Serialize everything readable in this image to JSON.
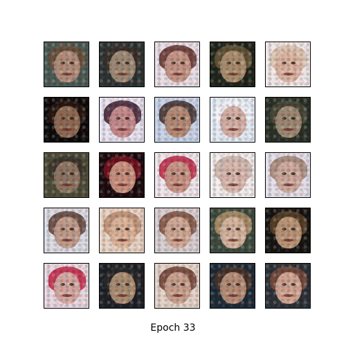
{
  "caption": "Epoch 33",
  "grid": {
    "rows": 5,
    "cols": 5,
    "images": [
      {
        "bg": "#4a5a52",
        "hair": "#6a5038",
        "face": "#b08c78"
      },
      {
        "bg": "#2c3330",
        "hair": "#3a3028",
        "face": "#9c8872"
      },
      {
        "bg": "#e8e0e6",
        "hair": "#5c2a24",
        "face": "#c49484"
      },
      {
        "bg": "#1e2418",
        "hair": "#6a5a3a",
        "face": "#a88c6c"
      },
      {
        "bg": "#f0e8e6",
        "hair": "#d8c0a8",
        "face": "#dcb4a0"
      },
      {
        "bg": "#0c0a08",
        "hair": "#2a1a10",
        "face": "#8c6850"
      },
      {
        "bg": "#e8e4f0",
        "hair": "#3a1a2a",
        "face": "#c48a8a"
      },
      {
        "bg": "#c8d4e8",
        "hair": "#3c2a24",
        "face": "#b48a74"
      },
      {
        "bg": "#e4ecf4",
        "hair": "#f4f4f8",
        "face": "#d4b0a4"
      },
      {
        "bg": "#283024",
        "hair": "#4a4a38",
        "face": "#9c8870"
      },
      {
        "bg": "#4c4c36",
        "hair": "#3a3428",
        "face": "#8c7460"
      },
      {
        "bg": "#1a0a0c",
        "hair": "#7a1420",
        "face": "#c8907c"
      },
      {
        "bg": "#f0e8ec",
        "hair": "#b8203c",
        "face": "#c89484"
      },
      {
        "bg": "#f4f0ee",
        "hair": "#c8b0a4",
        "face": "#d8b8ac"
      },
      {
        "bg": "#e4e0e8",
        "hair": "#a08070",
        "face": "#ceaa9c"
      },
      {
        "bg": "#dcdde4",
        "hair": "#5a3c30",
        "face": "#c09c8a"
      },
      {
        "bg": "#e8d4c4",
        "hair": "#b88a6c",
        "face": "#dcb498"
      },
      {
        "bg": "#d8d0d0",
        "hair": "#7a4c3a",
        "face": "#d0a894"
      },
      {
        "bg": "#3c4a3c",
        "hair": "#b4946c",
        "face": "#d4b49c"
      },
      {
        "bg": "#141410",
        "hair": "#5c4428",
        "face": "#b89474"
      },
      {
        "bg": "#e8d8e0",
        "hair": "#c02040",
        "face": "#d4a8a0"
      },
      {
        "bg": "#1c2024",
        "hair": "#2a2a28",
        "face": "#a88c70"
      },
      {
        "bg": "#e4d4c8",
        "hair": "#6a3a2c",
        "face": "#c8a08c"
      },
      {
        "bg": "#1c2a34",
        "hair": "#4a3428",
        "face": "#b48c74"
      },
      {
        "bg": "#2a3034",
        "hair": "#7a4c3c",
        "face": "#d0a490"
      }
    ]
  }
}
